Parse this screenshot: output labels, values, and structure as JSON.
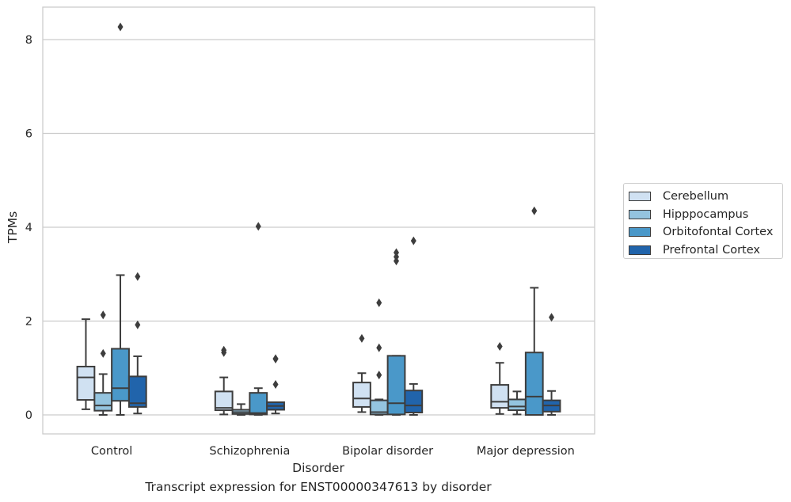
{
  "chart_data": {
    "type": "box",
    "caption": "Transcript expression for ENST00000347613 by disorder",
    "xlabel": "Disorder",
    "ylabel": "TPMs",
    "ylim": [
      -0.4,
      8.7
    ],
    "yticks": [
      0,
      2,
      4,
      6,
      8
    ],
    "grid": "horizontal",
    "legend_position": "right",
    "categories": [
      "Control",
      "Schizophrenia",
      "Bipolar disorder",
      "Major depression"
    ],
    "series": [
      {
        "name": "Cerebellum",
        "color": "#d0e1f2",
        "boxes": [
          {
            "whislo": 0.12,
            "q1": 0.32,
            "med": 0.8,
            "q3": 1.03,
            "whishi": 2.04,
            "fliers": []
          },
          {
            "whislo": 0.01,
            "q1": 0.1,
            "med": 0.15,
            "q3": 0.5,
            "whishi": 0.8,
            "fliers": [
              1.33,
              1.38
            ]
          },
          {
            "whislo": 0.06,
            "q1": 0.17,
            "med": 0.35,
            "q3": 0.69,
            "whishi": 0.89,
            "fliers": [
              1.63
            ]
          },
          {
            "whislo": 0.02,
            "q1": 0.15,
            "med": 0.28,
            "q3": 0.64,
            "whishi": 1.11,
            "fliers": [
              1.46
            ]
          }
        ]
      },
      {
        "name": "Hipppocampus",
        "color": "#94c4df",
        "boxes": [
          {
            "whislo": 0.0,
            "q1": 0.09,
            "med": 0.2,
            "q3": 0.47,
            "whishi": 0.87,
            "fliers": [
              1.31,
              2.13
            ]
          },
          {
            "whislo": 0.0,
            "q1": 0.02,
            "med": 0.06,
            "q3": 0.11,
            "whishi": 0.23,
            "fliers": []
          },
          {
            "whislo": 0.0,
            "q1": 0.01,
            "med": 0.06,
            "q3": 0.31,
            "whishi": 0.33,
            "fliers": [
              0.85,
              1.43,
              2.39
            ]
          },
          {
            "whislo": 0.01,
            "q1": 0.1,
            "med": 0.18,
            "q3": 0.33,
            "whishi": 0.5,
            "fliers": []
          }
        ]
      },
      {
        "name": "Orbitofontal Cortex",
        "color": "#4a98c9",
        "boxes": [
          {
            "whislo": 0.0,
            "q1": 0.3,
            "med": 0.57,
            "q3": 1.41,
            "whishi": 2.98,
            "fliers": [
              8.27
            ]
          },
          {
            "whislo": 0.0,
            "q1": 0.01,
            "med": 0.04,
            "q3": 0.47,
            "whishi": 0.57,
            "fliers": [
              4.02
            ]
          },
          {
            "whislo": 0.0,
            "q1": 0.01,
            "med": 0.25,
            "q3": 1.26,
            "whishi": 1.26,
            "fliers": [
              3.28,
              3.37,
              3.46
            ]
          },
          {
            "whislo": 0.0,
            "q1": 0.0,
            "med": 0.39,
            "q3": 1.33,
            "whishi": 2.71,
            "fliers": [
              4.35
            ]
          }
        ]
      },
      {
        "name": "Prefrontal Cortex",
        "color": "#2164ab",
        "boxes": [
          {
            "whislo": 0.03,
            "q1": 0.17,
            "med": 0.25,
            "q3": 0.82,
            "whishi": 1.25,
            "fliers": [
              1.92,
              2.95
            ]
          },
          {
            "whislo": 0.03,
            "q1": 0.11,
            "med": 0.19,
            "q3": 0.27,
            "whishi": 0.27,
            "fliers": [
              0.65,
              1.19,
              1.2
            ]
          },
          {
            "whislo": 0.0,
            "q1": 0.05,
            "med": 0.2,
            "q3": 0.52,
            "whishi": 0.66,
            "fliers": [
              3.71
            ]
          },
          {
            "whislo": 0.0,
            "q1": 0.07,
            "med": 0.2,
            "q3": 0.31,
            "whishi": 0.51,
            "fliers": [
              2.08
            ]
          }
        ]
      }
    ]
  }
}
